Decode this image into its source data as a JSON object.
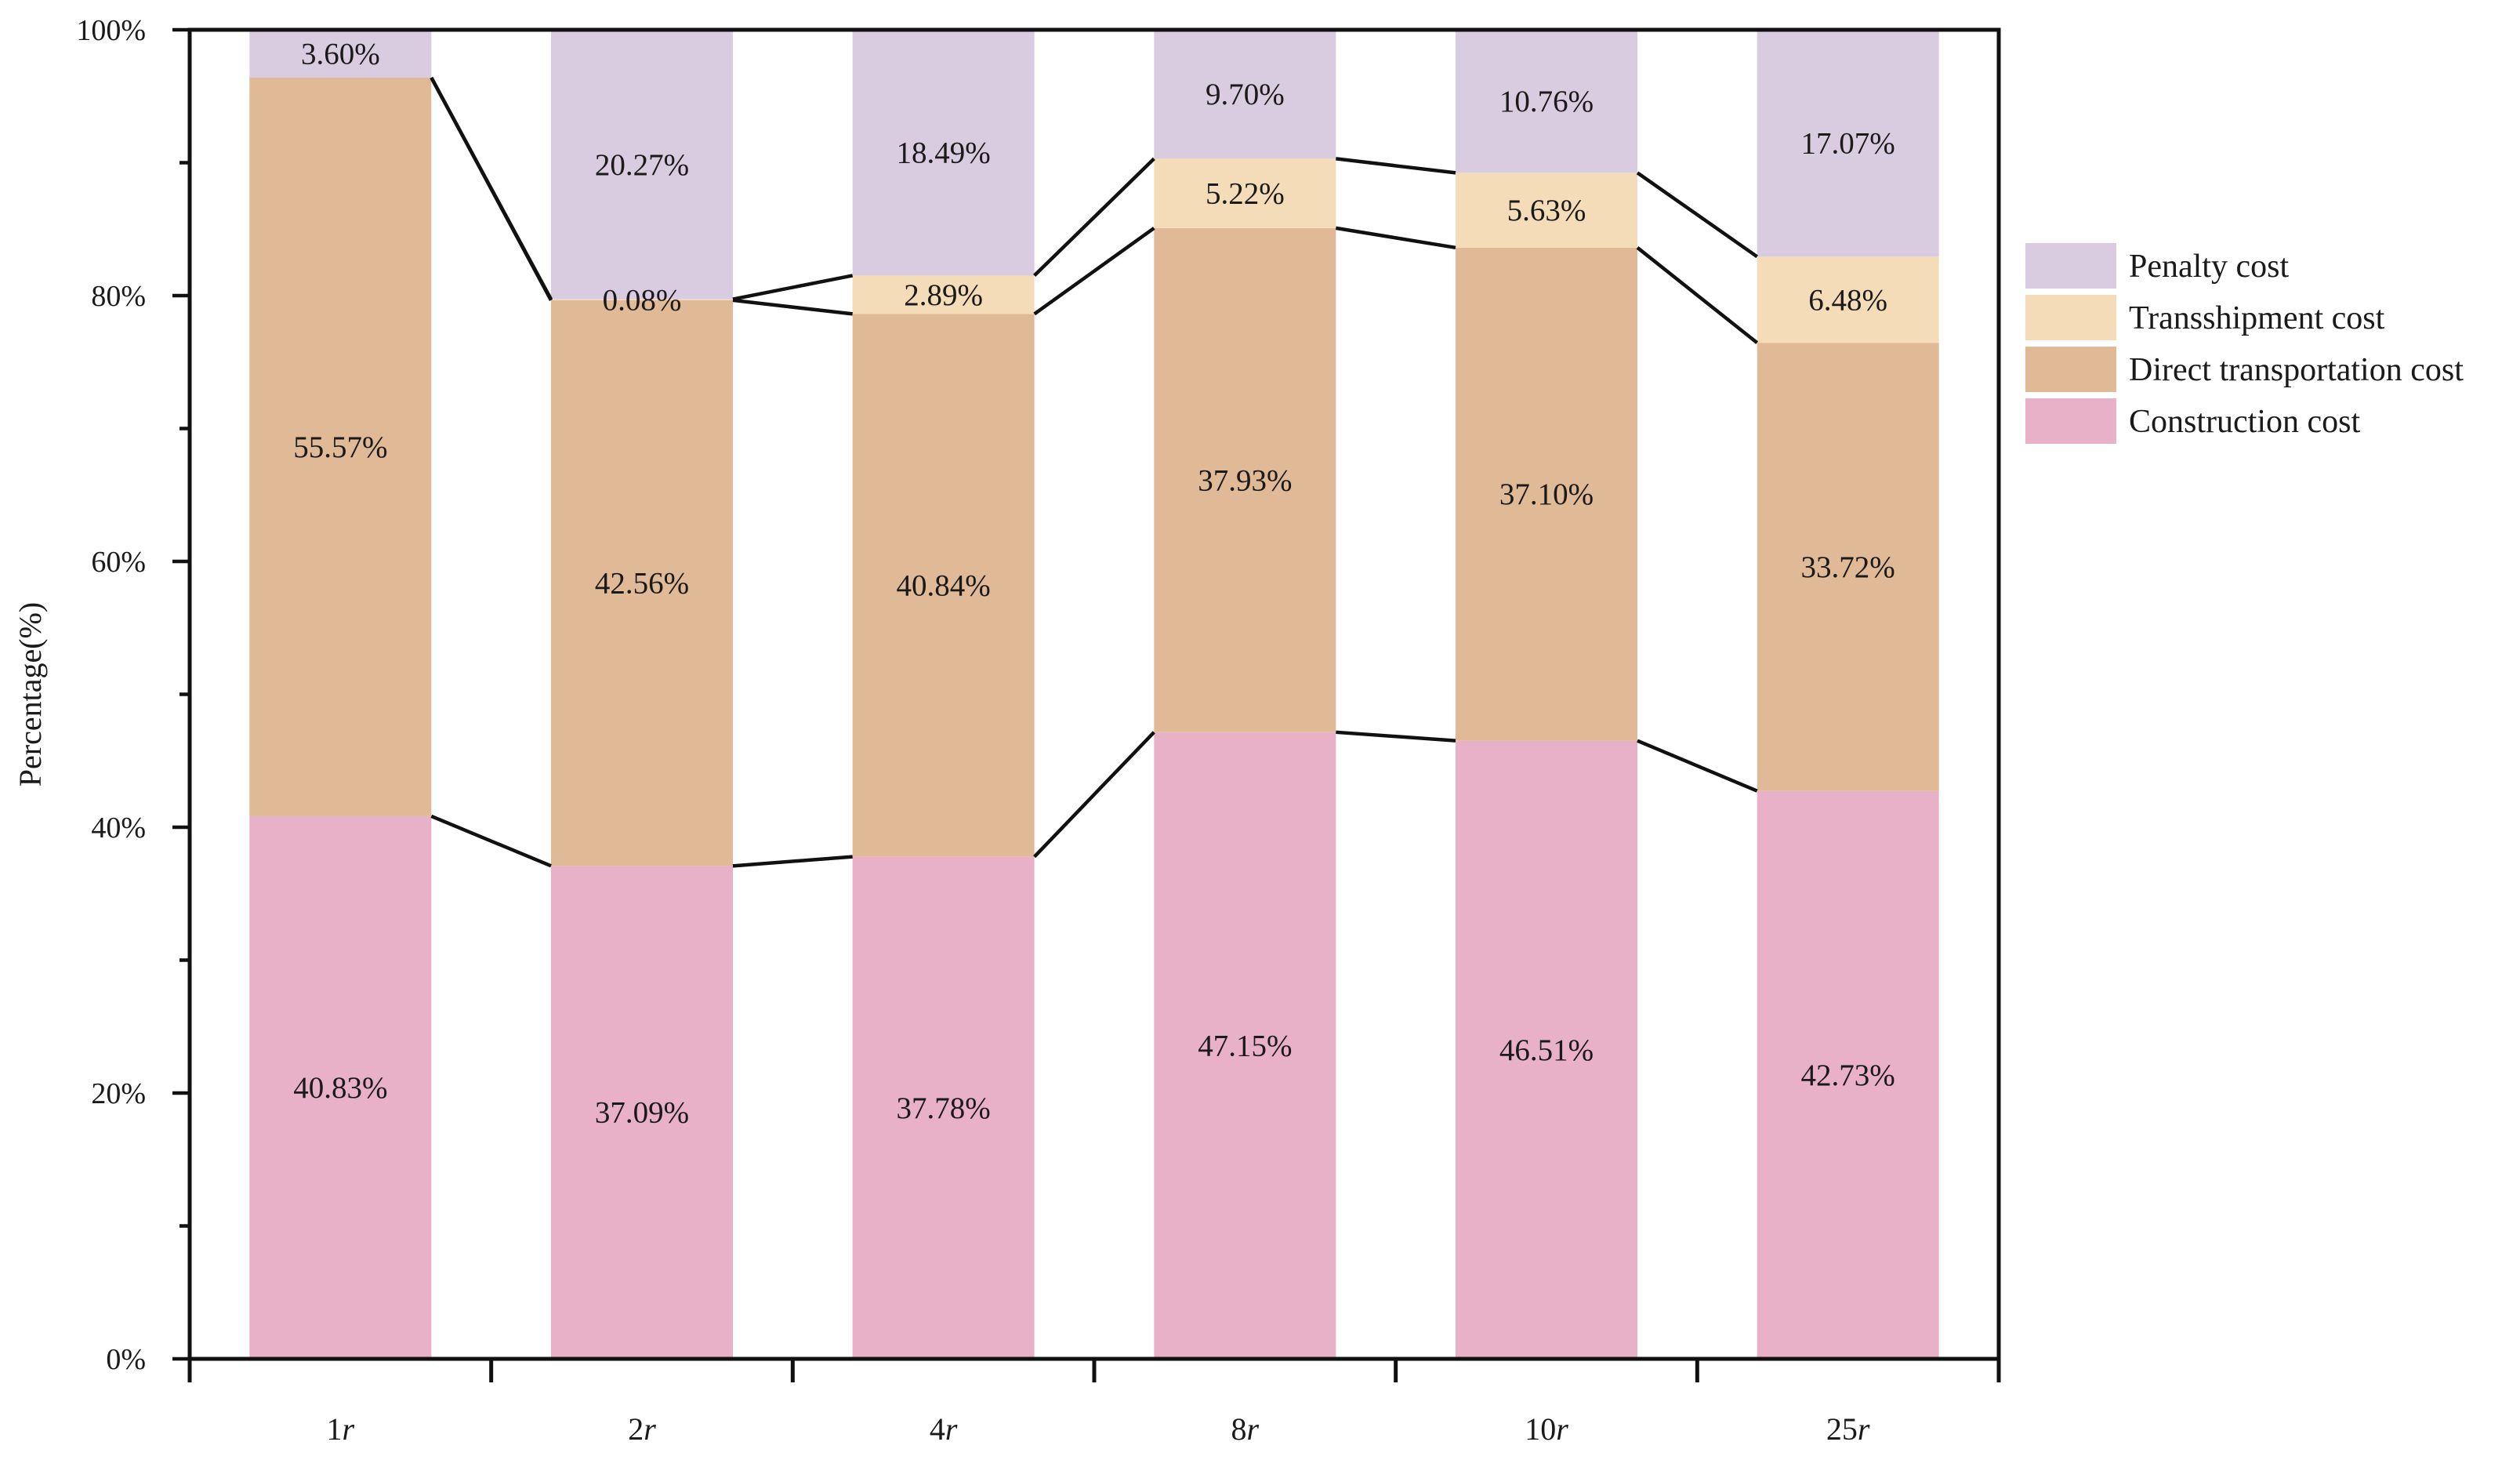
{
  "chart_data": {
    "type": "bar",
    "stacked": true,
    "normalized": true,
    "title": "",
    "xlabel": "",
    "ylabel": "Percentage(%)",
    "ylim": [
      0,
      100
    ],
    "y_ticks": [
      "0%",
      "20%",
      "40%",
      "60%",
      "80%",
      "100%"
    ],
    "categories": [
      {
        "num": "1",
        "unit": "r"
      },
      {
        "num": "2",
        "unit": "r"
      },
      {
        "num": "4",
        "unit": "r"
      },
      {
        "num": "8",
        "unit": "r"
      },
      {
        "num": "10",
        "unit": "r"
      },
      {
        "num": "25",
        "unit": "r"
      }
    ],
    "series": [
      {
        "name": "Construction cost",
        "color": "#e8b1c8",
        "values": [
          40.83,
          37.09,
          37.78,
          47.15,
          46.51,
          42.73
        ],
        "labels": [
          "40.83%",
          "37.09%",
          "37.78%",
          "47.15%",
          "46.51%",
          "42.73%"
        ]
      },
      {
        "name": "Direct transportation cost",
        "color": "#e0b996",
        "values": [
          55.57,
          42.56,
          40.84,
          37.93,
          37.1,
          33.72
        ],
        "labels": [
          "55.57%",
          "42.56%",
          "40.84%",
          "37.93%",
          "37.10%",
          "33.72%"
        ]
      },
      {
        "name": "Transshipment cost",
        "color": "#f5dcb8",
        "values": [
          0,
          0.08,
          2.89,
          5.22,
          5.63,
          6.48
        ],
        "labels": [
          null,
          "0.08%",
          "2.89%",
          "5.22%",
          "5.63%",
          "6.48%"
        ]
      },
      {
        "name": "Penalty cost",
        "color": "#d9cce0",
        "values": [
          3.6,
          20.27,
          18.49,
          9.7,
          10.76,
          17.07
        ],
        "labels": [
          "3.60%",
          "20.27%",
          "18.49%",
          "9.70%",
          "10.76%",
          "17.07%"
        ]
      }
    ],
    "legend_order": [
      "Penalty cost",
      "Transshipment cost",
      "Direct transportation cost",
      "Construction cost"
    ],
    "legend_position": "right",
    "connector_lines": true,
    "grid": false
  }
}
